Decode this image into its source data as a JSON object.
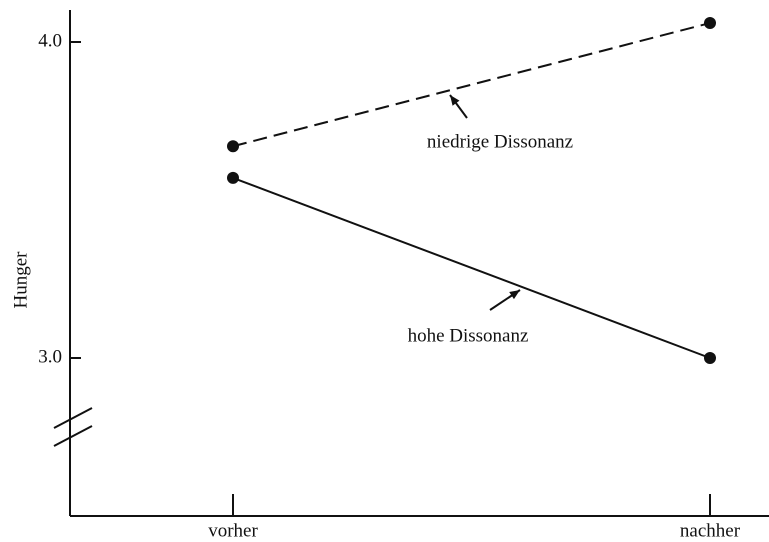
{
  "chart_data": {
    "type": "line",
    "y_label": "Hunger",
    "categories": [
      "vorher",
      "nachher"
    ],
    "series": [
      {
        "name": "niedrige Dissonanz",
        "color": "#111111",
        "line_style": "dashed",
        "values": [
          3.67,
          4.06
        ]
      },
      {
        "name": "hohe Dissonanz",
        "color": "#111111",
        "line_style": "solid",
        "values": [
          3.57,
          3.0
        ]
      }
    ],
    "ylim": [
      2.5,
      4.1
    ],
    "yticks": [
      {
        "value": 3,
        "label": "3.0"
      },
      {
        "value": 4,
        "label": "4.0"
      }
    ],
    "axis_break": true
  }
}
